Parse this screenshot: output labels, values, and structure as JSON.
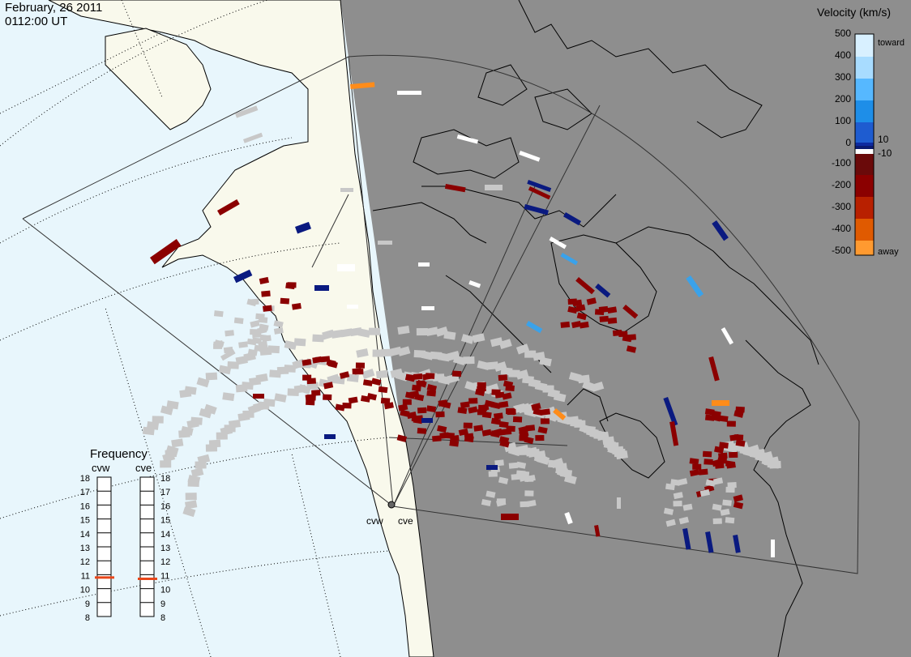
{
  "header": {
    "date": "February, 26 2011",
    "time": "0112:00 UT"
  },
  "colorbar": {
    "title": "Velocity (km/s)",
    "ticks": [
      "500",
      "400",
      "300",
      "200",
      "100",
      "10",
      "0",
      "-10",
      "-100",
      "-200",
      "-300",
      "-400",
      "-500"
    ],
    "toward_label": "toward",
    "away_label": "away"
  },
  "frequency_panel": {
    "title": "Frequency",
    "radars": [
      "cvw",
      "cve"
    ],
    "scale": [
      "18",
      "17",
      "16",
      "15",
      "14",
      "13",
      "12",
      "11",
      "10",
      "9",
      "8"
    ],
    "cvw_value": 10.8,
    "cve_value": 10.7
  },
  "radar_labels": [
    "cvw",
    "cve"
  ],
  "colors": {
    "ocean_day": "#e8f6fc",
    "land_day": "#f9f9ec",
    "night": "#8e8e8e",
    "ground_scatter": "#c8c8c8",
    "away_dark": "#8b0000",
    "toward_dark": "#0a1a80",
    "toward_light": "#3aa2ea",
    "away_orange": "#ff8c1a",
    "low_velocity": "#ffffff"
  }
}
